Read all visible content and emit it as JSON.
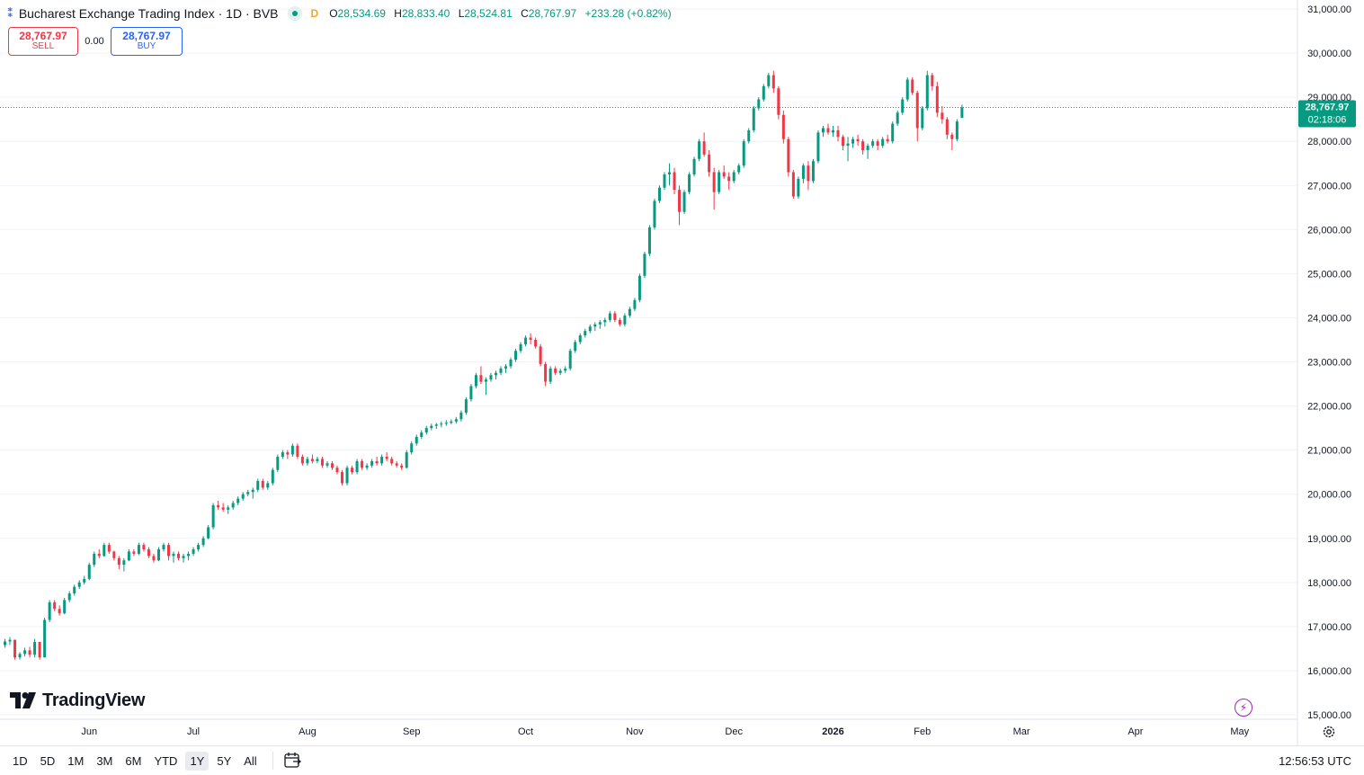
{
  "header": {
    "symbol_title": "Bucharest Exchange Trading Index · 1D · BVB",
    "delay_badge": "D",
    "ohlc": {
      "open_label": "O",
      "open": "28,534.69",
      "high_label": "H",
      "high": "28,833.40",
      "low_label": "L",
      "low": "28,524.81",
      "close_label": "C",
      "close": "28,767.97",
      "change": "+233.28 (+0.82%)"
    }
  },
  "trade": {
    "sell_price": "28,767.97",
    "sell_label": "SELL",
    "spread": "0.00",
    "buy_price": "28,767.97",
    "buy_label": "BUY"
  },
  "price_axis": {
    "current_price": "28,767.97",
    "countdown": "02:18:06",
    "labels": [
      "31,000.00",
      "30,000.00",
      "29,000.00",
      "28,000.00",
      "27,000.00",
      "26,000.00",
      "25,000.00",
      "24,000.00",
      "23,000.00",
      "22,000.00",
      "21,000.00",
      "20,000.00",
      "19,000.00",
      "18,000.00",
      "17,000.00",
      "16,000.00",
      "15,000.00"
    ]
  },
  "time_axis": {
    "labels": [
      "Jun",
      "Jul",
      "Aug",
      "Sep",
      "Oct",
      "Nov",
      "Dec",
      "2026",
      "Feb",
      "Mar",
      "Apr",
      "May"
    ]
  },
  "brand": {
    "logo_text": "TradingView"
  },
  "bottom_bar": {
    "ranges": [
      "1D",
      "5D",
      "1M",
      "3M",
      "6M",
      "YTD",
      "1Y",
      "5Y",
      "All"
    ],
    "active_range": "1Y",
    "clock": "12:56:53 UTC"
  },
  "colors": {
    "up": "#089981",
    "down": "#f23645",
    "grid": "#f0f3fa",
    "accent": "#2962ff"
  },
  "chart_data": {
    "type": "candlestick",
    "ylim": [
      15000,
      31000
    ],
    "x_ticks": [
      {
        "label": "Jun",
        "index": 17
      },
      {
        "label": "Jul",
        "index": 38
      },
      {
        "label": "Aug",
        "index": 61
      },
      {
        "label": "Sep",
        "index": 82
      },
      {
        "label": "Oct",
        "index": 105
      },
      {
        "label": "Nov",
        "index": 127
      },
      {
        "label": "Dec",
        "index": 147
      },
      {
        "label": "2026",
        "index": 167
      },
      {
        "label": "Feb",
        "index": 185
      },
      {
        "label": "Mar",
        "index": 205
      },
      {
        "label": "Apr",
        "index": 228
      },
      {
        "label": "May",
        "index": 249
      }
    ],
    "last_price": 28767.97,
    "candles": [
      [
        16580,
        16720,
        16520,
        16660
      ],
      [
        16660,
        16760,
        16580,
        16700
      ],
      [
        16700,
        16700,
        16250,
        16300
      ],
      [
        16300,
        16420,
        16250,
        16380
      ],
      [
        16380,
        16520,
        16320,
        16460
      ],
      [
        16460,
        16540,
        16300,
        16360
      ],
      [
        16360,
        16720,
        16300,
        16650
      ],
      [
        16650,
        16650,
        16250,
        16300
      ],
      [
        16300,
        17200,
        16300,
        17150
      ],
      [
        17150,
        17600,
        17100,
        17550
      ],
      [
        17550,
        17600,
        17350,
        17400
      ],
      [
        17400,
        17480,
        17250,
        17300
      ],
      [
        17300,
        17650,
        17280,
        17600
      ],
      [
        17600,
        17800,
        17550,
        17750
      ],
      [
        17750,
        17950,
        17700,
        17900
      ],
      [
        17900,
        18050,
        17850,
        18000
      ],
      [
        18000,
        18150,
        17950,
        18080
      ],
      [
        18080,
        18450,
        18050,
        18400
      ],
      [
        18400,
        18700,
        18350,
        18650
      ],
      [
        18650,
        18750,
        18550,
        18600
      ],
      [
        18600,
        18900,
        18580,
        18850
      ],
      [
        18850,
        18900,
        18650,
        18700
      ],
      [
        18700,
        18720,
        18500,
        18550
      ],
      [
        18550,
        18600,
        18300,
        18400
      ],
      [
        18400,
        18550,
        18250,
        18500
      ],
      [
        18500,
        18750,
        18480,
        18700
      ],
      [
        18700,
        18750,
        18600,
        18650
      ],
      [
        18650,
        18900,
        18620,
        18850
      ],
      [
        18850,
        18900,
        18700,
        18750
      ],
      [
        18750,
        18800,
        18550,
        18600
      ],
      [
        18600,
        18650,
        18450,
        18500
      ],
      [
        18500,
        18800,
        18480,
        18750
      ],
      [
        18750,
        18900,
        18700,
        18850
      ],
      [
        18850,
        18900,
        18500,
        18600
      ],
      [
        18600,
        18700,
        18450,
        18650
      ],
      [
        18650,
        18700,
        18500,
        18550
      ],
      [
        18550,
        18650,
        18450,
        18600
      ],
      [
        18600,
        18700,
        18500,
        18650
      ],
      [
        18650,
        18800,
        18600,
        18750
      ],
      [
        18750,
        18900,
        18700,
        18850
      ],
      [
        18850,
        19050,
        18800,
        19000
      ],
      [
        19000,
        19300,
        18980,
        19250
      ],
      [
        19250,
        19800,
        19200,
        19750
      ],
      [
        19750,
        19850,
        19650,
        19700
      ],
      [
        19700,
        19800,
        19600,
        19650
      ],
      [
        19650,
        19750,
        19550,
        19700
      ],
      [
        19700,
        19850,
        19650,
        19800
      ],
      [
        19800,
        19950,
        19750,
        19900
      ],
      [
        19900,
        20050,
        19850,
        20000
      ],
      [
        20000,
        20100,
        19950,
        20050
      ],
      [
        20050,
        20150,
        19900,
        20100
      ],
      [
        20100,
        20350,
        20050,
        20300
      ],
      [
        20300,
        20350,
        20100,
        20150
      ],
      [
        20150,
        20300,
        20100,
        20250
      ],
      [
        20250,
        20600,
        20200,
        20550
      ],
      [
        20550,
        20900,
        20500,
        20850
      ],
      [
        20850,
        21000,
        20800,
        20950
      ],
      [
        20950,
        21000,
        20800,
        20900
      ],
      [
        20900,
        21150,
        20850,
        21100
      ],
      [
        21100,
        21150,
        20800,
        20850
      ],
      [
        20850,
        20900,
        20650,
        20700
      ],
      [
        20700,
        20850,
        20650,
        20800
      ],
      [
        20800,
        20900,
        20700,
        20750
      ],
      [
        20750,
        20850,
        20700,
        20800
      ],
      [
        20800,
        20850,
        20600,
        20650
      ],
      [
        20650,
        20750,
        20600,
        20700
      ],
      [
        20700,
        20750,
        20550,
        20600
      ],
      [
        20600,
        20650,
        20450,
        20500
      ],
      [
        20500,
        20550,
        20200,
        20250
      ],
      [
        20250,
        20650,
        20200,
        20600
      ],
      [
        20600,
        20650,
        20450,
        20500
      ],
      [
        20500,
        20800,
        20450,
        20750
      ],
      [
        20750,
        20800,
        20550,
        20600
      ],
      [
        20600,
        20700,
        20550,
        20650
      ],
      [
        20650,
        20800,
        20600,
        20750
      ],
      [
        20750,
        20850,
        20650,
        20700
      ],
      [
        20700,
        20900,
        20650,
        20850
      ],
      [
        20850,
        20950,
        20750,
        20800
      ],
      [
        20800,
        20850,
        20650,
        20700
      ],
      [
        20700,
        20750,
        20600,
        20650
      ],
      [
        20650,
        20700,
        20550,
        20600
      ],
      [
        20600,
        21000,
        20580,
        20950
      ],
      [
        20950,
        21200,
        20900,
        21150
      ],
      [
        21150,
        21350,
        21100,
        21300
      ],
      [
        21300,
        21450,
        21250,
        21400
      ],
      [
        21400,
        21550,
        21350,
        21500
      ],
      [
        21500,
        21600,
        21450,
        21550
      ],
      [
        21550,
        21620,
        21480,
        21580
      ],
      [
        21580,
        21650,
        21520,
        21600
      ],
      [
        21600,
        21680,
        21550,
        21620
      ],
      [
        21620,
        21700,
        21580,
        21650
      ],
      [
        21650,
        21750,
        21600,
        21700
      ],
      [
        21700,
        21900,
        21650,
        21850
      ],
      [
        21850,
        22200,
        21800,
        22150
      ],
      [
        22150,
        22500,
        22100,
        22450
      ],
      [
        22450,
        22750,
        22400,
        22700
      ],
      [
        22700,
        22900,
        22500,
        22550
      ],
      [
        22550,
        22650,
        22250,
        22600
      ],
      [
        22600,
        22750,
        22550,
        22700
      ],
      [
        22700,
        22800,
        22600,
        22750
      ],
      [
        22750,
        22900,
        22700,
        22850
      ],
      [
        22850,
        22950,
        22750,
        22900
      ],
      [
        22900,
        23100,
        22850,
        23050
      ],
      [
        23050,
        23300,
        23000,
        23250
      ],
      [
        23250,
        23450,
        23200,
        23400
      ],
      [
        23400,
        23600,
        23350,
        23550
      ],
      [
        23550,
        23650,
        23400,
        23500
      ],
      [
        23500,
        23550,
        23300,
        23350
      ],
      [
        23350,
        23400,
        22900,
        22950
      ],
      [
        22950,
        23000,
        22450,
        22550
      ],
      [
        22550,
        22900,
        22500,
        22850
      ],
      [
        22850,
        22900,
        22700,
        22750
      ],
      [
        22750,
        22850,
        22700,
        22800
      ],
      [
        22800,
        22900,
        22750,
        22850
      ],
      [
        22850,
        23300,
        22800,
        23250
      ],
      [
        23250,
        23500,
        23200,
        23450
      ],
      [
        23450,
        23650,
        23400,
        23600
      ],
      [
        23600,
        23750,
        23550,
        23700
      ],
      [
        23700,
        23850,
        23650,
        23800
      ],
      [
        23800,
        23900,
        23700,
        23850
      ],
      [
        23850,
        23950,
        23750,
        23900
      ],
      [
        23900,
        24000,
        23800,
        23950
      ],
      [
        23950,
        24150,
        23900,
        24100
      ],
      [
        24100,
        24150,
        23900,
        23950
      ],
      [
        23950,
        24000,
        23800,
        23850
      ],
      [
        23850,
        24100,
        23800,
        24050
      ],
      [
        24050,
        24250,
        24000,
        24200
      ],
      [
        24200,
        24450,
        24150,
        24400
      ],
      [
        24400,
        25000,
        24350,
        24950
      ],
      [
        24950,
        25500,
        24900,
        25450
      ],
      [
        25450,
        26100,
        25400,
        26050
      ],
      [
        26050,
        26700,
        26000,
        26650
      ],
      [
        26650,
        27000,
        26600,
        26950
      ],
      [
        26950,
        27300,
        26900,
        27250
      ],
      [
        27250,
        27500,
        27000,
        27300
      ],
      [
        27300,
        27400,
        26800,
        26900
      ],
      [
        26900,
        27000,
        26100,
        26400
      ],
      [
        26400,
        26900,
        26350,
        26850
      ],
      [
        26850,
        27300,
        26800,
        27250
      ],
      [
        27250,
        27650,
        27200,
        27600
      ],
      [
        27600,
        28050,
        27550,
        28000
      ],
      [
        28000,
        28200,
        27650,
        27700
      ],
      [
        27700,
        27800,
        27200,
        27300
      ],
      [
        27300,
        27400,
        26450,
        26850
      ],
      [
        26850,
        27350,
        26800,
        27300
      ],
      [
        27300,
        27450,
        27150,
        27200
      ],
      [
        27200,
        27300,
        26900,
        27100
      ],
      [
        27100,
        27350,
        27050,
        27300
      ],
      [
        27300,
        27500,
        27250,
        27450
      ],
      [
        27450,
        28050,
        27400,
        28000
      ],
      [
        28000,
        28300,
        27950,
        28250
      ],
      [
        28250,
        28800,
        28200,
        28750
      ],
      [
        28750,
        29000,
        28700,
        28950
      ],
      [
        28950,
        29300,
        28900,
        29250
      ],
      [
        29250,
        29550,
        29200,
        29500
      ],
      [
        29500,
        29600,
        29100,
        29200
      ],
      [
        29200,
        29250,
        28500,
        28600
      ],
      [
        28600,
        28700,
        27950,
        28050
      ],
      [
        28050,
        28100,
        27200,
        27300
      ],
      [
        27300,
        27350,
        26700,
        26750
      ],
      [
        26750,
        27200,
        26700,
        27150
      ],
      [
        27150,
        27500,
        27050,
        27450
      ],
      [
        27450,
        27550,
        26900,
        27100
      ],
      [
        27100,
        27600,
        27050,
        27550
      ],
      [
        27550,
        28250,
        27500,
        28200
      ],
      [
        28200,
        28350,
        28100,
        28300
      ],
      [
        28300,
        28400,
        28150,
        28200
      ],
      [
        28200,
        28350,
        28100,
        28250
      ],
      [
        28250,
        28350,
        28000,
        28100
      ],
      [
        28100,
        28150,
        27800,
        27900
      ],
      [
        27900,
        28100,
        27550,
        27950
      ],
      [
        27950,
        28100,
        27850,
        28050
      ],
      [
        28050,
        28150,
        27900,
        28000
      ],
      [
        28000,
        28050,
        27700,
        27800
      ],
      [
        27800,
        27950,
        27600,
        27900
      ],
      [
        27900,
        28050,
        27850,
        28000
      ],
      [
        28000,
        28050,
        27800,
        27900
      ],
      [
        27900,
        28100,
        27850,
        28050
      ],
      [
        28050,
        28150,
        27950,
        28000
      ],
      [
        28000,
        28450,
        27950,
        28400
      ],
      [
        28400,
        28700,
        28350,
        28650
      ],
      [
        28650,
        29000,
        28600,
        28950
      ],
      [
        28950,
        29450,
        28900,
        29400
      ],
      [
        29400,
        29450,
        29050,
        29100
      ],
      [
        29100,
        29150,
        28000,
        28300
      ],
      [
        28300,
        28800,
        28250,
        28750
      ],
      [
        28750,
        29600,
        28700,
        29500
      ],
      [
        29500,
        29550,
        29150,
        29250
      ],
      [
        29250,
        29350,
        28550,
        28650
      ],
      [
        28650,
        28800,
        28400,
        28500
      ],
      [
        28500,
        28550,
        28050,
        28150
      ],
      [
        28150,
        28200,
        27800,
        28050
      ],
      [
        28050,
        28500,
        28000,
        28450
      ],
      [
        28534.69,
        28833.4,
        28524.81,
        28767.97
      ]
    ]
  }
}
